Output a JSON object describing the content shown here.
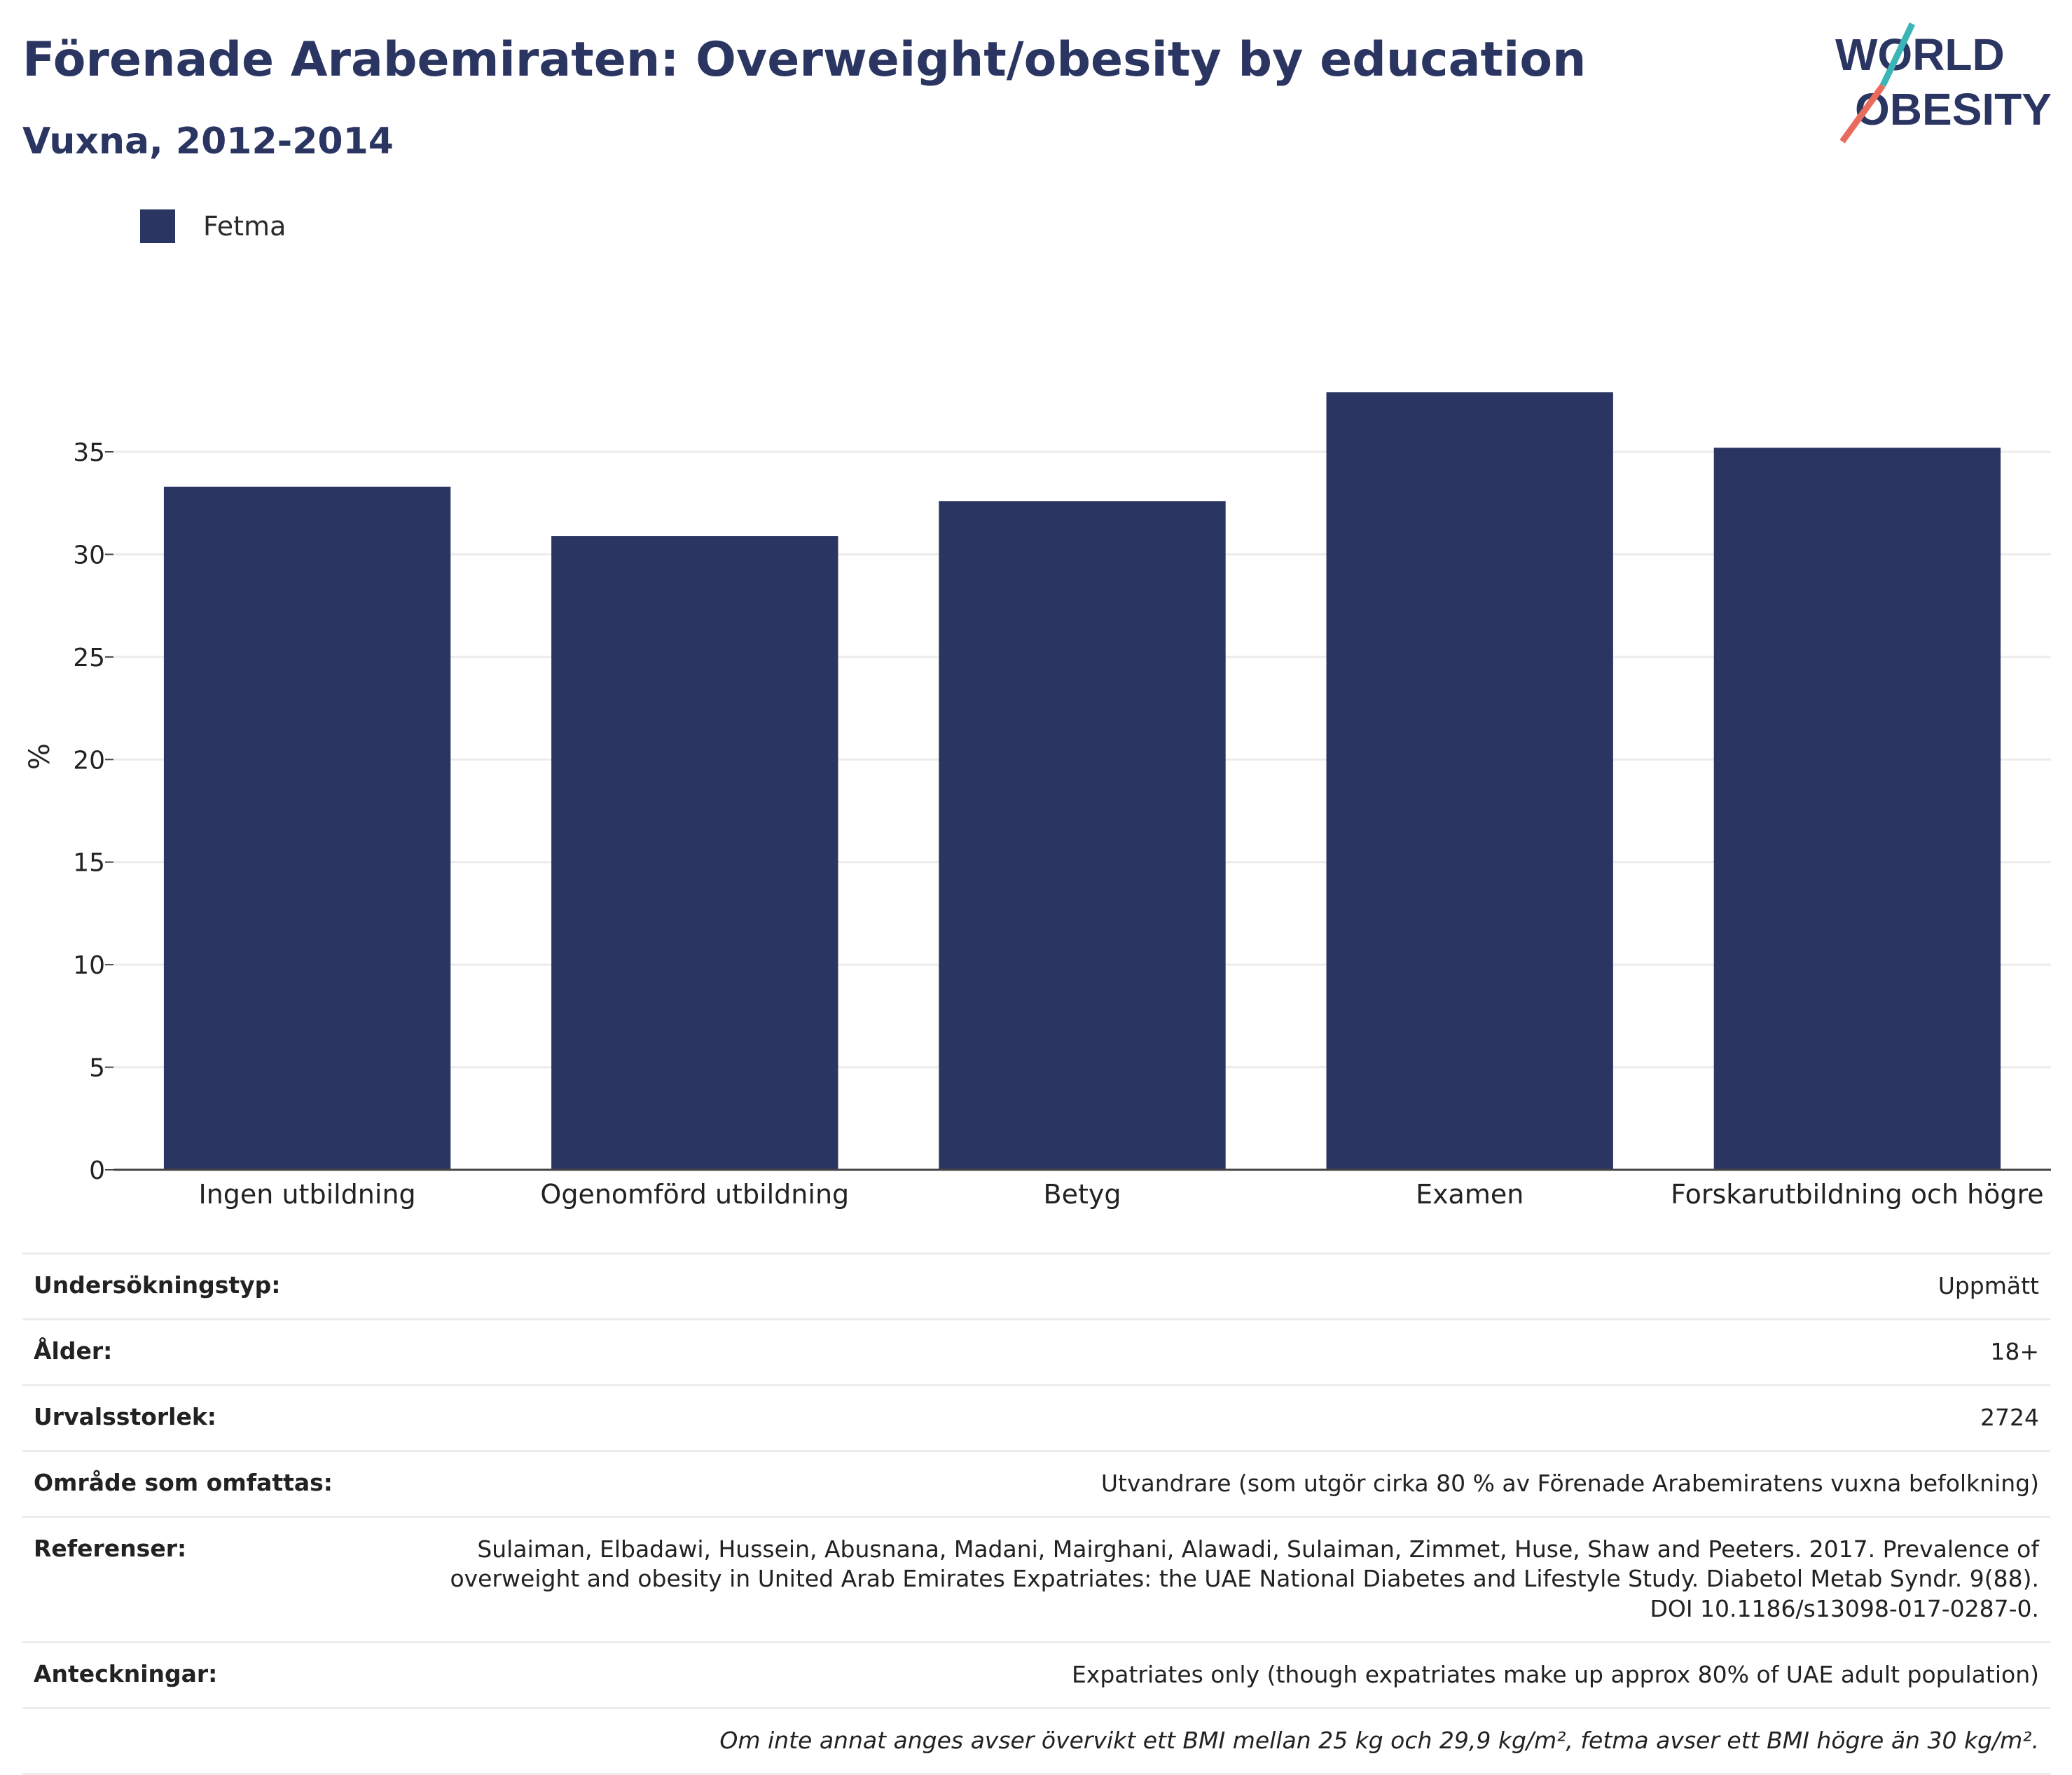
{
  "header": {
    "title": "Förenade Arabemiraten: Overweight/obesity by education",
    "subtitle": "Vuxna, 2012-2014"
  },
  "logo": {
    "line1": "WORLD",
    "line2": "OBESITY"
  },
  "colors": {
    "bar": "#2b3562",
    "text": "#2b3562",
    "logo_teal": "#3bb5b6",
    "logo_coral": "#e96b5c"
  },
  "chart_data": {
    "type": "bar",
    "categories": [
      "Ingen utbildning",
      "Ogenomförd utbildning",
      "Betyg",
      "Examen",
      "Forskarutbildning och högre"
    ],
    "series": [
      {
        "name": "Fetma",
        "values": [
          33.3,
          30.9,
          32.6,
          37.9,
          35.2
        ]
      }
    ],
    "ylabel": "%",
    "ylim": [
      0,
      40
    ],
    "yticks": [
      0,
      5,
      10,
      15,
      20,
      25,
      30,
      35
    ],
    "grid": true,
    "legend": "top-left"
  },
  "meta": {
    "rows": [
      {
        "label": "Undersökningstyp:",
        "value": "Uppmätt"
      },
      {
        "label": "Ålder:",
        "value": "18+"
      },
      {
        "label": "Urvalsstorlek:",
        "value": "2724"
      },
      {
        "label": "Område som omfattas:",
        "value": "Utvandrare (som utgör cirka 80 % av Förenade Arabemiratens vuxna befolkning)"
      },
      {
        "label": "Referenser:",
        "value": "Sulaiman, Elbadawi, Hussein, Abusnana, Madani, Mairghani, Alawadi, Sulaiman, Zimmet, Huse, Shaw and Peeters. 2017. Prevalence of overweight and obesity in United Arab Emirates Expatriates: the UAE National Diabetes and Lifestyle Study. Diabetol Metab Syndr. 9(88). DOI 10.1186/s13098-017-0287-0."
      },
      {
        "label": "Anteckningar:",
        "value": "Expatriates only (though expatriates make up approx 80% of UAE adult population)"
      }
    ],
    "footnote": "Om inte annat anges avser övervikt ett BMI mellan 25 kg och 29,9 kg/m², fetma avser ett BMI högre än 30 kg/m²."
  }
}
